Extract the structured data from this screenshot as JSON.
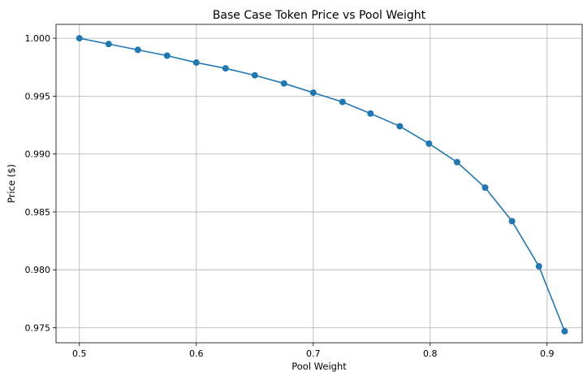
{
  "chart_data": {
    "type": "line",
    "title": "Base Case Token Price vs Pool Weight",
    "xlabel": "Pool Weight",
    "ylabel": "Price ($)",
    "xlim": [
      0.48,
      0.93
    ],
    "ylim": [
      0.9737,
      1.0012
    ],
    "xticks": [
      0.5,
      0.6,
      0.7,
      0.8,
      0.9
    ],
    "xtick_labels": [
      "0.5",
      "0.6",
      "0.7",
      "0.8",
      "0.9"
    ],
    "yticks": [
      0.975,
      0.98,
      0.985,
      0.99,
      0.995,
      1.0
    ],
    "ytick_labels": [
      "0.975",
      "0.980",
      "0.985",
      "0.990",
      "0.995",
      "1.000"
    ],
    "grid": true,
    "color": "#1f77b4",
    "series": [
      {
        "x": [
          0.5,
          0.525,
          0.55,
          0.575,
          0.6,
          0.625,
          0.65,
          0.675,
          0.7,
          0.725,
          0.749,
          0.774,
          0.799,
          0.823,
          0.847,
          0.87,
          0.893,
          0.915
        ],
        "y": [
          1.0,
          0.9995,
          0.999,
          0.9985,
          0.9979,
          0.9974,
          0.9968,
          0.9961,
          0.9953,
          0.9945,
          0.9935,
          0.9924,
          0.9909,
          0.9893,
          0.9871,
          0.9842,
          0.9803,
          0.9747
        ]
      }
    ]
  }
}
